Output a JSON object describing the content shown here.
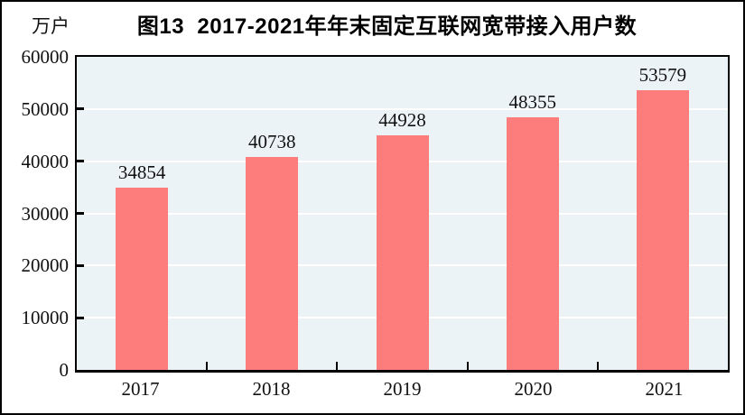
{
  "chart_data": {
    "type": "bar",
    "title": "图13  2017-2021年年末固定互联网宽带接入用户数",
    "unit_label": "万户",
    "categories": [
      "2017",
      "2018",
      "2019",
      "2020",
      "2021"
    ],
    "values": [
      34854,
      40738,
      44928,
      48355,
      53579
    ],
    "value_labels": [
      "34854",
      "40738",
      "44928",
      "48355",
      "53579"
    ],
    "xlabel": "",
    "ylabel": "万户",
    "ylim": [
      0,
      60000
    ],
    "yticks": [
      0,
      10000,
      20000,
      30000,
      40000,
      50000,
      60000
    ],
    "grid": "horizontal",
    "legend": "none",
    "colors": {
      "bar": "#FD7C7C",
      "plot_background": "#ECF3F7",
      "gridline": "#FFFFFF",
      "axis": "#000000",
      "text": "#111111",
      "frame_border": "#000000",
      "page_background": "#FFFFFF"
    }
  }
}
